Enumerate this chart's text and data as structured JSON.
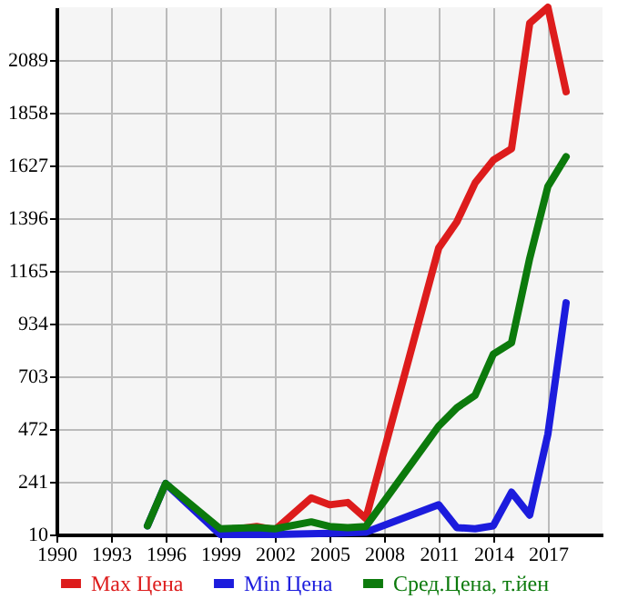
{
  "chart_data": {
    "type": "line",
    "xlim": [
      1990,
      2020
    ],
    "xticks": [
      1990,
      1993,
      1996,
      1999,
      2002,
      2005,
      2008,
      2011,
      2014,
      2017
    ],
    "ylim": [
      10,
      2320
    ],
    "yticks": [
      10,
      241,
      472,
      703,
      934,
      1165,
      1396,
      1627,
      1858,
      2089
    ],
    "grid": true,
    "legend": "bottom",
    "series": [
      {
        "name": "Max Цена",
        "color": "#dd1c1c",
        "x": [
          2000,
          2001,
          2002,
          2004,
          2005,
          2006,
          2007,
          2011,
          2012,
          2013,
          2014,
          2015,
          2016,
          2017,
          2018
        ],
        "values": [
          35,
          45,
          30,
          170,
          140,
          150,
          80,
          1265,
          1380,
          1550,
          1650,
          1700,
          2250,
          2320,
          1950
        ]
      },
      {
        "name": "Min Цена",
        "color": "#1c1cdd",
        "x": [
          1995,
          1996,
          1999,
          2002,
          2005,
          2007,
          2011,
          2012,
          2013,
          2014,
          2015,
          2016,
          2017,
          2018
        ],
        "values": [
          48,
          233,
          10,
          10,
          15,
          20,
          140,
          40,
          35,
          48,
          195,
          95,
          450,
          1025
        ]
      },
      {
        "name": "Сред.Цена, т.йен",
        "color": "#0c7a0c",
        "x": [
          1995,
          1996,
          1999,
          2001,
          2002,
          2004,
          2005,
          2006,
          2007,
          2011,
          2012,
          2013,
          2014,
          2015,
          2016,
          2017,
          2018
        ],
        "values": [
          48,
          233,
          35,
          40,
          35,
          65,
          45,
          40,
          45,
          485,
          565,
          620,
          800,
          850,
          1220,
          1535,
          1665
        ]
      }
    ]
  }
}
